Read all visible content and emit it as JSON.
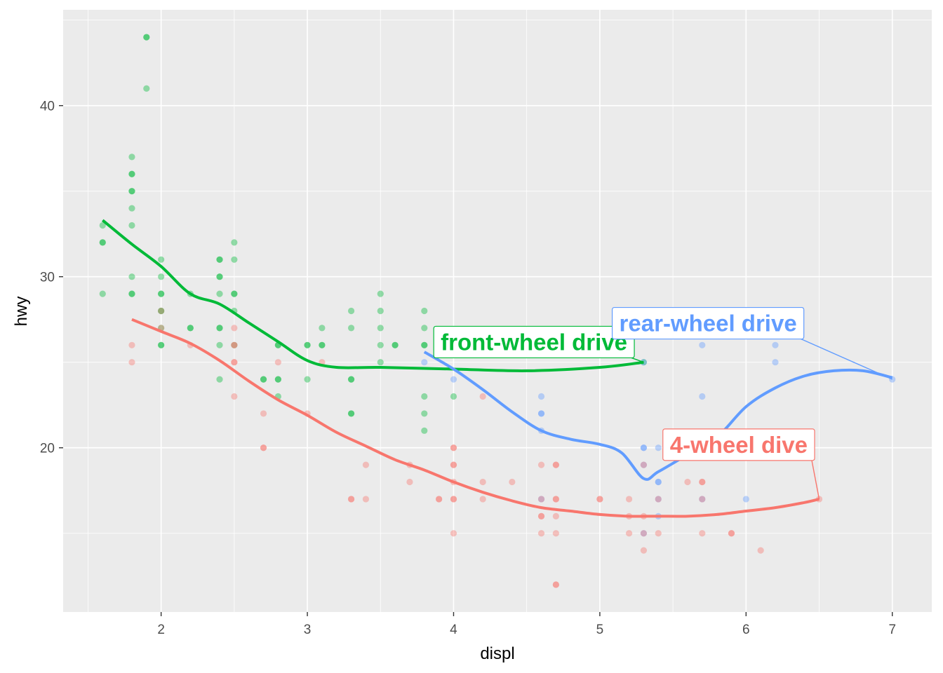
{
  "chart_data": {
    "type": "scatter",
    "xlabel": "displ",
    "ylabel": "hwy",
    "xlim": [
      1.33,
      7.27
    ],
    "ylim": [
      10.4,
      45.6
    ],
    "x_ticks": [
      2,
      3,
      4,
      5,
      6,
      7
    ],
    "y_ticks": [
      20,
      30,
      40
    ],
    "grid": true,
    "legend": "none",
    "series": [
      {
        "name": "front-wheel drive",
        "color": "#00BA38",
        "points": [
          [
            1.6,
            33
          ],
          [
            1.6,
            32
          ],
          [
            1.6,
            32
          ],
          [
            1.6,
            29
          ],
          [
            1.8,
            37
          ],
          [
            1.8,
            36
          ],
          [
            1.8,
            36
          ],
          [
            1.8,
            35
          ],
          [
            1.8,
            35
          ],
          [
            1.8,
            34
          ],
          [
            1.8,
            33
          ],
          [
            1.8,
            30
          ],
          [
            1.8,
            29
          ],
          [
            1.8,
            29
          ],
          [
            1.9,
            44
          ],
          [
            1.9,
            44
          ],
          [
            1.9,
            41
          ],
          [
            2.0,
            31
          ],
          [
            2.0,
            30
          ],
          [
            2.0,
            29
          ],
          [
            2.0,
            29
          ],
          [
            2.0,
            28
          ],
          [
            2.0,
            28
          ],
          [
            2.0,
            27
          ],
          [
            2.0,
            26
          ],
          [
            2.0,
            26
          ],
          [
            2.2,
            29
          ],
          [
            2.2,
            27
          ],
          [
            2.2,
            27
          ],
          [
            2.4,
            31
          ],
          [
            2.4,
            31
          ],
          [
            2.4,
            30
          ],
          [
            2.4,
            30
          ],
          [
            2.4,
            29
          ],
          [
            2.4,
            27
          ],
          [
            2.4,
            27
          ],
          [
            2.4,
            26
          ],
          [
            2.4,
            24
          ],
          [
            2.5,
            32
          ],
          [
            2.5,
            31
          ],
          [
            2.5,
            29
          ],
          [
            2.5,
            29
          ],
          [
            2.5,
            28
          ],
          [
            2.5,
            26
          ],
          [
            2.7,
            24
          ],
          [
            2.7,
            24
          ],
          [
            2.8,
            26
          ],
          [
            2.8,
            26
          ],
          [
            2.8,
            24
          ],
          [
            2.8,
            24
          ],
          [
            2.8,
            23
          ],
          [
            3.0,
            26
          ],
          [
            3.0,
            26
          ],
          [
            3.0,
            24
          ],
          [
            3.1,
            27
          ],
          [
            3.1,
            26
          ],
          [
            3.1,
            26
          ],
          [
            3.3,
            28
          ],
          [
            3.3,
            27
          ],
          [
            3.3,
            24
          ],
          [
            3.3,
            24
          ],
          [
            3.3,
            22
          ],
          [
            3.3,
            22
          ],
          [
            3.5,
            29
          ],
          [
            3.5,
            28
          ],
          [
            3.5,
            27
          ],
          [
            3.5,
            26
          ],
          [
            3.5,
            25
          ],
          [
            3.6,
            26
          ],
          [
            3.6,
            26
          ],
          [
            3.8,
            28
          ],
          [
            3.8,
            27
          ],
          [
            3.8,
            26
          ],
          [
            3.8,
            26
          ],
          [
            3.8,
            23
          ],
          [
            3.8,
            22
          ],
          [
            3.8,
            21
          ],
          [
            4.0,
            23
          ],
          [
            5.3,
            25
          ]
        ],
        "smooth": [
          [
            1.6,
            33.3
          ],
          [
            1.8,
            31.9
          ],
          [
            2.0,
            30.6
          ],
          [
            2.2,
            29.0
          ],
          [
            2.4,
            28.4
          ],
          [
            2.6,
            27.3
          ],
          [
            2.8,
            26.2
          ],
          [
            3.0,
            25.1
          ],
          [
            3.2,
            24.7
          ],
          [
            3.5,
            24.7
          ],
          [
            4.0,
            24.6
          ],
          [
            4.5,
            24.5
          ],
          [
            5.0,
            24.7
          ],
          [
            5.3,
            25.0
          ]
        ]
      },
      {
        "name": "rear-wheel drive",
        "color": "#619CFF",
        "points": [
          [
            3.8,
            25
          ],
          [
            4.0,
            26
          ],
          [
            4.0,
            24
          ],
          [
            4.6,
            23
          ],
          [
            4.6,
            22
          ],
          [
            4.6,
            22
          ],
          [
            4.6,
            21
          ],
          [
            4.6,
            17
          ],
          [
            5.3,
            20
          ],
          [
            5.3,
            20
          ],
          [
            5.3,
            19
          ],
          [
            5.3,
            15
          ],
          [
            5.3,
            25
          ],
          [
            5.4,
            20
          ],
          [
            5.4,
            18
          ],
          [
            5.4,
            18
          ],
          [
            5.4,
            17
          ],
          [
            5.4,
            16
          ],
          [
            5.7,
            26
          ],
          [
            5.7,
            23
          ],
          [
            5.7,
            17
          ],
          [
            6.0,
            17
          ],
          [
            6.2,
            26
          ],
          [
            6.2,
            25
          ],
          [
            7.0,
            24
          ]
        ],
        "smooth": [
          [
            3.8,
            25.6
          ],
          [
            4.0,
            24.6
          ],
          [
            4.2,
            23.4
          ],
          [
            4.4,
            22.1
          ],
          [
            4.6,
            21.0
          ],
          [
            4.8,
            20.5
          ],
          [
            5.0,
            20.2
          ],
          [
            5.15,
            19.7
          ],
          [
            5.3,
            18.2
          ],
          [
            5.4,
            18.6
          ],
          [
            5.6,
            19.6
          ],
          [
            5.8,
            20.6
          ],
          [
            6.0,
            22.4
          ],
          [
            6.2,
            23.5
          ],
          [
            6.4,
            24.2
          ],
          [
            6.6,
            24.5
          ],
          [
            6.8,
            24.5
          ],
          [
            7.0,
            24.1
          ]
        ]
      },
      {
        "name": "4-wheel dive",
        "color": "#F8766D",
        "points": [
          [
            1.8,
            26
          ],
          [
            1.8,
            25
          ],
          [
            2.0,
            28
          ],
          [
            2.0,
            27
          ],
          [
            2.2,
            26
          ],
          [
            2.5,
            27
          ],
          [
            2.5,
            26
          ],
          [
            2.5,
            26
          ],
          [
            2.5,
            25
          ],
          [
            2.5,
            25
          ],
          [
            2.5,
            23
          ],
          [
            2.7,
            22
          ],
          [
            2.7,
            20
          ],
          [
            2.7,
            20
          ],
          [
            2.8,
            25
          ],
          [
            3.0,
            22
          ],
          [
            3.1,
            25
          ],
          [
            3.3,
            17
          ],
          [
            3.3,
            17
          ],
          [
            3.4,
            19
          ],
          [
            3.4,
            17
          ],
          [
            3.7,
            19
          ],
          [
            3.7,
            18
          ],
          [
            3.9,
            17
          ],
          [
            3.9,
            17
          ],
          [
            4.0,
            20
          ],
          [
            4.0,
            20
          ],
          [
            4.0,
            19
          ],
          [
            4.0,
            19
          ],
          [
            4.0,
            18
          ],
          [
            4.0,
            17
          ],
          [
            4.0,
            17
          ],
          [
            4.0,
            15
          ],
          [
            4.2,
            23
          ],
          [
            4.2,
            18
          ],
          [
            4.2,
            17
          ],
          [
            4.4,
            18
          ],
          [
            4.6,
            19
          ],
          [
            4.6,
            17
          ],
          [
            4.6,
            16
          ],
          [
            4.6,
            16
          ],
          [
            4.6,
            15
          ],
          [
            4.7,
            19
          ],
          [
            4.7,
            19
          ],
          [
            4.7,
            17
          ],
          [
            4.7,
            17
          ],
          [
            4.7,
            16
          ],
          [
            4.7,
            15
          ],
          [
            4.7,
            12
          ],
          [
            4.7,
            12
          ],
          [
            5.0,
            17
          ],
          [
            5.0,
            17
          ],
          [
            5.2,
            17
          ],
          [
            5.2,
            16
          ],
          [
            5.2,
            15
          ],
          [
            5.3,
            19
          ],
          [
            5.3,
            16
          ],
          [
            5.3,
            15
          ],
          [
            5.3,
            14
          ],
          [
            5.4,
            17
          ],
          [
            5.4,
            15
          ],
          [
            5.6,
            18
          ],
          [
            5.7,
            18
          ],
          [
            5.7,
            18
          ],
          [
            5.7,
            17
          ],
          [
            5.7,
            15
          ],
          [
            5.9,
            15
          ],
          [
            5.9,
            15
          ],
          [
            6.1,
            14
          ],
          [
            6.5,
            17
          ]
        ],
        "smooth": [
          [
            1.8,
            27.5
          ],
          [
            2.0,
            26.8
          ],
          [
            2.2,
            26.1
          ],
          [
            2.4,
            25.1
          ],
          [
            2.6,
            23.9
          ],
          [
            2.8,
            22.8
          ],
          [
            3.0,
            21.9
          ],
          [
            3.2,
            20.9
          ],
          [
            3.4,
            20.1
          ],
          [
            3.6,
            19.3
          ],
          [
            3.8,
            18.7
          ],
          [
            4.0,
            18.0
          ],
          [
            4.2,
            17.4
          ],
          [
            4.4,
            16.9
          ],
          [
            4.6,
            16.5
          ],
          [
            4.8,
            16.3
          ],
          [
            5.0,
            16.1
          ],
          [
            5.2,
            16.0
          ],
          [
            5.4,
            16.0
          ],
          [
            5.6,
            16.0
          ],
          [
            5.8,
            16.1
          ],
          [
            6.0,
            16.3
          ],
          [
            6.2,
            16.5
          ],
          [
            6.4,
            16.8
          ],
          [
            6.5,
            17.0
          ]
        ]
      }
    ],
    "annotations": [
      {
        "label": "front-wheel drive",
        "color": "#00BA38",
        "anchor": [
          5.3,
          25.0
        ],
        "box_x": 3.0,
        "box_y": 1.2,
        "dx": 4.55
      },
      {
        "label": "rear-wheel drive",
        "color": "#619CFF",
        "anchor": [
          7.0,
          24.0
        ],
        "box_x": 3.7,
        "box_y": 3.3,
        "dx": 5.74
      },
      {
        "label": "4-wheel dive",
        "color": "#F8766D",
        "anchor": [
          6.5,
          17.0
        ],
        "box_x": 2.4,
        "box_y": 3.2,
        "dx": 5.95
      }
    ]
  }
}
